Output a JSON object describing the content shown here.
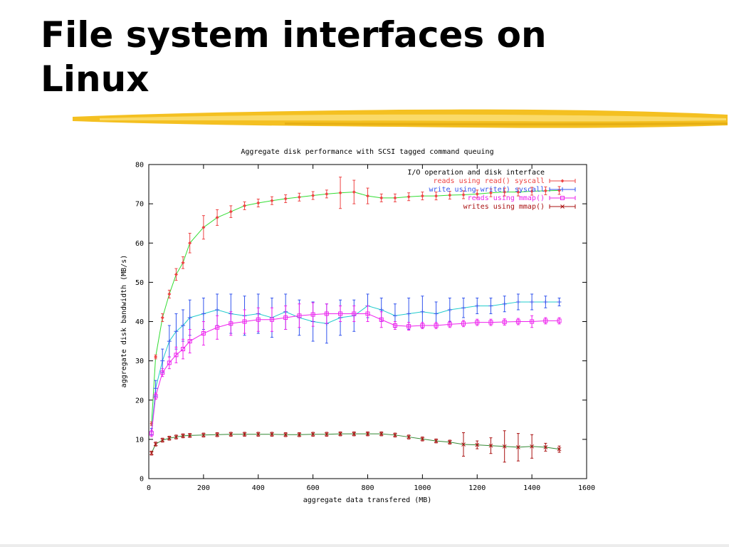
{
  "slide": {
    "title_line1": "File system interfaces on",
    "title_line2": "Linux"
  },
  "colors": {
    "brush": "#f4c021",
    "reads_read": "#ee4444",
    "reads_read_line": "#33dd33",
    "write_write": "#3355ee",
    "write_write_line": "#22cccc",
    "reads_mmap": "#ee22ee",
    "writes_mmap": "#aa1111",
    "writes_mmap_line": "#338833"
  },
  "chart_data": {
    "type": "line",
    "title": "Aggregate disk performance with SCSI tagged command queuing",
    "xlabel": "aggregate data transfered (MB)",
    "ylabel": "aggregate disk bandwidth (MB/s)",
    "xlim": [
      0,
      1600
    ],
    "ylim": [
      0,
      80
    ],
    "xticks": [
      "0",
      "200",
      "400",
      "600",
      "800",
      "1000",
      "1200",
      "1400",
      "1600"
    ],
    "yticks": [
      "0",
      "10",
      "20",
      "30",
      "40",
      "50",
      "60",
      "70",
      "80"
    ],
    "grid": false,
    "legend": {
      "placement": "top-right",
      "title": "I/O operation and disk interface"
    },
    "series": [
      {
        "name": "reads using read() syscall",
        "x": [
          10,
          25,
          50,
          75,
          100,
          125,
          150,
          200,
          250,
          300,
          350,
          400,
          450,
          500,
          550,
          600,
          650,
          700,
          750,
          800,
          850,
          900,
          950,
          1000,
          1050,
          1100,
          1150,
          1200,
          1250,
          1300,
          1350,
          1400,
          1450,
          1500
        ],
        "y": [
          14,
          31,
          41,
          47,
          52,
          55,
          60,
          64,
          66.5,
          68,
          69.5,
          70.2,
          70.8,
          71.3,
          71.7,
          72.1,
          72.5,
          72.8,
          73,
          72,
          71.5,
          71.5,
          71.8,
          72,
          72,
          72.2,
          72.3,
          72.5,
          72.8,
          73,
          73,
          73.2,
          73.3,
          73.4
        ],
        "err": [
          0.5,
          0.5,
          1,
          1,
          1.5,
          1.5,
          2.5,
          3,
          2,
          1.5,
          1,
          1,
          1,
          1,
          1,
          1,
          1,
          4,
          3,
          2,
          1,
          1,
          1,
          1,
          1,
          1,
          1,
          1,
          1,
          1,
          1,
          1,
          1,
          1
        ]
      },
      {
        "name": "write using write() syscall",
        "x": [
          10,
          25,
          50,
          75,
          100,
          125,
          150,
          200,
          250,
          300,
          350,
          400,
          450,
          500,
          550,
          600,
          650,
          700,
          750,
          800,
          850,
          900,
          950,
          1000,
          1050,
          1100,
          1150,
          1200,
          1250,
          1300,
          1350,
          1400,
          1450,
          1500
        ],
        "y": [
          12,
          23,
          30,
          35,
          37.5,
          39,
          41,
          42,
          43,
          42,
          41.5,
          42,
          41,
          42.5,
          41,
          40,
          39.5,
          41,
          41.5,
          44,
          43,
          41.5,
          42,
          42.5,
          42,
          43,
          43.5,
          44,
          44,
          44.5,
          45,
          45,
          45,
          45
        ],
        "err": [
          0.8,
          2,
          3,
          4,
          4.5,
          4,
          4.5,
          4,
          4,
          5,
          5,
          5,
          5,
          4.5,
          4.5,
          5,
          5,
          4.5,
          4,
          3,
          3,
          3,
          4,
          4,
          3,
          3,
          2.5,
          2,
          2,
          2,
          2,
          2,
          1.5,
          1
        ]
      },
      {
        "name": "reads using mmap()",
        "x": [
          10,
          25,
          50,
          75,
          100,
          125,
          150,
          200,
          250,
          300,
          350,
          400,
          450,
          500,
          550,
          600,
          650,
          700,
          750,
          800,
          850,
          900,
          950,
          1000,
          1050,
          1100,
          1150,
          1200,
          1250,
          1300,
          1350,
          1400,
          1450,
          1500
        ],
        "y": [
          11.5,
          21,
          27,
          29.5,
          31.5,
          33,
          35,
          37,
          38.5,
          39.5,
          40,
          40.5,
          40.5,
          41,
          41.5,
          41.8,
          42,
          42,
          42,
          42,
          40.5,
          39,
          38.8,
          39,
          39,
          39.3,
          39.5,
          39.8,
          39.8,
          39.9,
          40,
          40,
          40.2,
          40.2
        ],
        "err": [
          0.8,
          0.8,
          1,
          1.5,
          2,
          2.5,
          3,
          3,
          3,
          3,
          3,
          3,
          3,
          3,
          3,
          3,
          2.5,
          2,
          2,
          2,
          2,
          1,
          1,
          0.8,
          0.8,
          0.8,
          0.8,
          0.8,
          0.8,
          0.8,
          0.8,
          1.5,
          0.8,
          0.8
        ]
      },
      {
        "name": "writes using mmap()",
        "x": [
          10,
          25,
          50,
          75,
          100,
          125,
          150,
          200,
          250,
          300,
          350,
          400,
          450,
          500,
          550,
          600,
          650,
          700,
          750,
          800,
          850,
          900,
          950,
          1000,
          1050,
          1100,
          1150,
          1200,
          1250,
          1300,
          1350,
          1400,
          1450,
          1500
        ],
        "y": [
          6.5,
          8.8,
          9.8,
          10.3,
          10.6,
          10.9,
          11,
          11.1,
          11.2,
          11.3,
          11.3,
          11.3,
          11.3,
          11.2,
          11.2,
          11.3,
          11.3,
          11.4,
          11.4,
          11.4,
          11.4,
          11.1,
          10.6,
          10.1,
          9.6,
          9.3,
          8.7,
          8.6,
          8.4,
          8.2,
          8.0,
          8.2,
          8.0,
          7.5
        ],
        "err": [
          0.5,
          0.5,
          0.5,
          0.5,
          0.5,
          0.5,
          0.5,
          0.5,
          0.5,
          0.5,
          0.5,
          0.5,
          0.5,
          0.5,
          0.5,
          0.5,
          0.5,
          0.5,
          0.5,
          0.5,
          0.5,
          0.5,
          0.5,
          0.5,
          0.5,
          0.5,
          3,
          1,
          2,
          4,
          3.5,
          3,
          1,
          0.8
        ]
      }
    ]
  }
}
